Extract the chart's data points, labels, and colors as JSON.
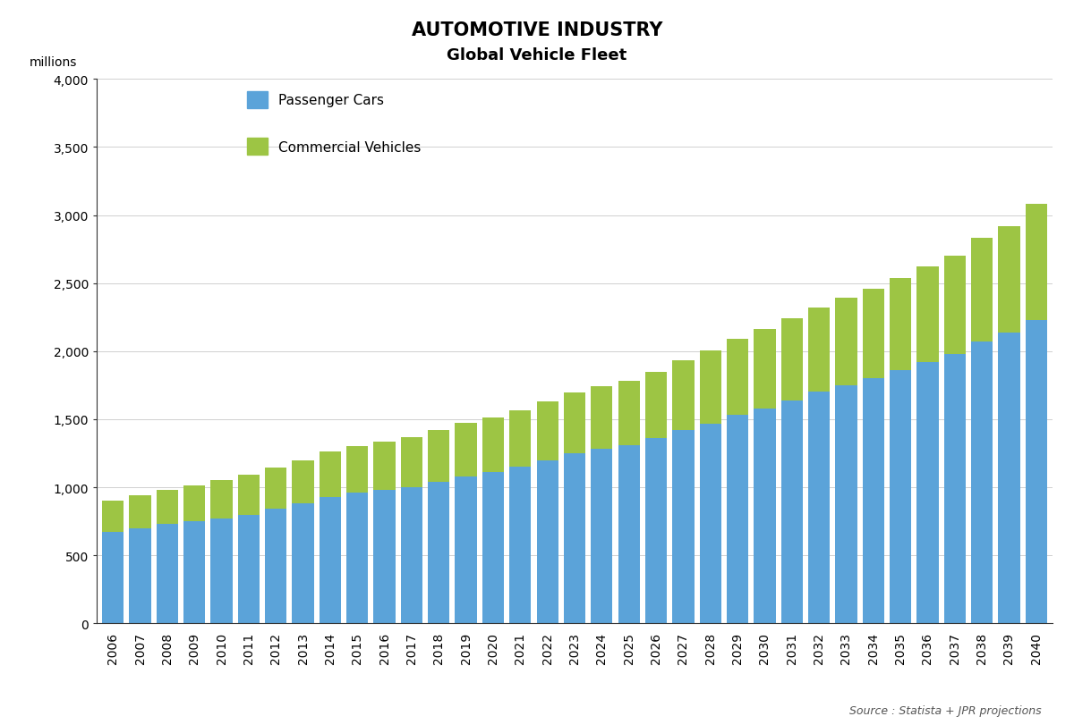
{
  "title_line1": "AUTOMOTIVE INDUSTRY",
  "title_line2": "Global Vehicle Fleet",
  "ylabel": "millions",
  "source": "Source : Statista + JPR projections",
  "years": [
    2006,
    2007,
    2008,
    2009,
    2010,
    2011,
    2012,
    2013,
    2014,
    2015,
    2016,
    2017,
    2018,
    2019,
    2020,
    2021,
    2022,
    2023,
    2024,
    2025,
    2026,
    2027,
    2028,
    2029,
    2030,
    2031,
    2032,
    2033,
    2034,
    2035,
    2036,
    2037,
    2038,
    2039,
    2040
  ],
  "passenger_cars": [
    670,
    700,
    730,
    750,
    770,
    800,
    840,
    880,
    930,
    960,
    980,
    1000,
    1040,
    1080,
    1110,
    1150,
    1200,
    1250,
    1280,
    1310,
    1360,
    1420,
    1470,
    1530,
    1580,
    1640,
    1700,
    1750,
    1800,
    1860,
    1920,
    1980,
    2070,
    2140,
    2230
  ],
  "commercial_vehicles": [
    230,
    240,
    250,
    265,
    280,
    295,
    305,
    315,
    330,
    340,
    355,
    365,
    380,
    395,
    400,
    415,
    430,
    445,
    460,
    475,
    490,
    510,
    535,
    560,
    580,
    600,
    620,
    640,
    660,
    680,
    700,
    720,
    760,
    780,
    855
  ],
  "bar_color_passenger": "#5BA3D9",
  "bar_color_commercial": "#9DC544",
  "ylim": [
    0,
    4000
  ],
  "yticks": [
    0,
    500,
    1000,
    1500,
    2000,
    2500,
    3000,
    3500,
    4000
  ],
  "ytick_labels": [
    "0",
    "500",
    "1,000",
    "1,500",
    "2,000",
    "2,500",
    "3,000",
    "3,500",
    "4,000"
  ],
  "legend_passenger": "Passenger Cars",
  "legend_commercial": "Commercial Vehicles",
  "title_fontsize": 15,
  "subtitle_fontsize": 13,
  "tick_fontsize": 10,
  "legend_fontsize": 11,
  "source_fontsize": 9,
  "bar_width": 0.8
}
